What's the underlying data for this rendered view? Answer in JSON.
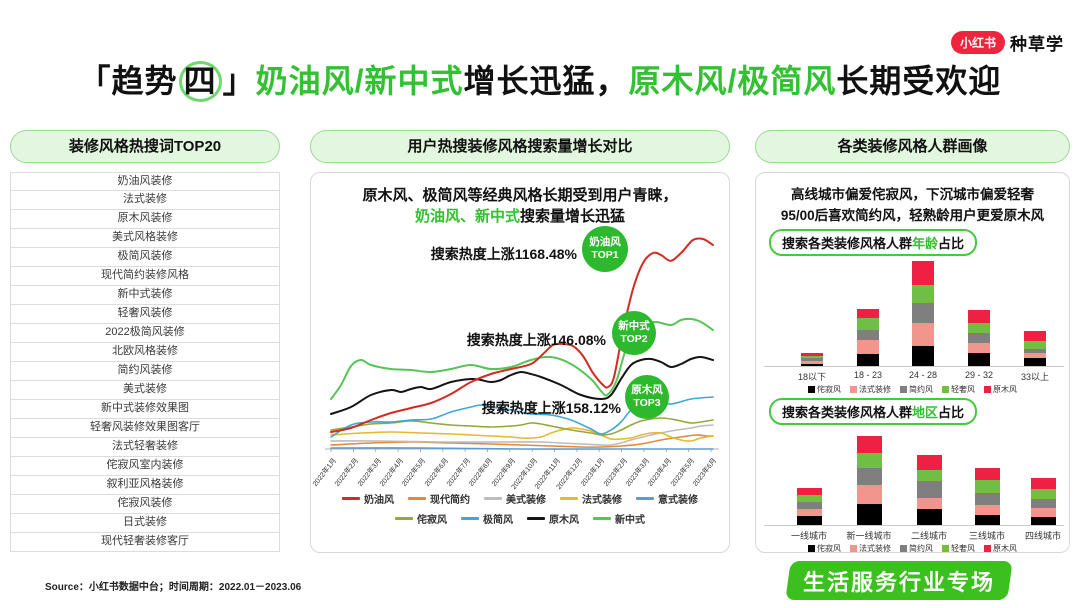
{
  "logo": {
    "brand": "小红书",
    "suffix": "种草学"
  },
  "title": {
    "parts": [
      {
        "t": "「趋势"
      },
      {
        "t": "四",
        "circled": true
      },
      {
        "t": "」"
      },
      {
        "t": "奶油风/新中式",
        "green": true
      },
      {
        "t": "增长迅猛，"
      },
      {
        "t": "原木风/极简风",
        "green": true
      },
      {
        "t": "长期受欢迎"
      }
    ]
  },
  "left_panel": {
    "header": "装修风格热搜词TOP20",
    "items": [
      "奶油风装修",
      "法式装修",
      "原木风装修",
      "美式风格装修",
      "极简风装修",
      "现代简约装修风格",
      "新中式装修",
      "轻奢风装修",
      "2022极简风装修",
      "北欧风格装修",
      "简约风装修",
      "美式装修",
      "新中式装修效果图",
      "轻奢风装修效果图客厅",
      "法式轻奢装修",
      "侘寂风室内装修",
      "叙利亚风格装修",
      "侘寂风装修",
      "日式装修",
      "现代轻奢装修客厅"
    ]
  },
  "mid_panel": {
    "header": "用户热搜装修风格搜索量增长对比",
    "subtitle_line1": "原木风、极简风等经典风格长期受到用户青睐，",
    "subtitle_line2_parts": [
      {
        "t": "奶油风、新中式",
        "green": true
      },
      {
        "t": "搜索量增长迅猛"
      }
    ]
  },
  "right_panel": {
    "header": "各类装修风格人群画像",
    "subtitle_line1": "高线城市偏爱侘寂风，下沉城市偏爱轻奢",
    "subtitle_line2": "95/00后喜欢简约风，轻熟龄用户更爱原木风",
    "age_pill_parts": [
      {
        "t": "搜索各类装修风格人群"
      },
      {
        "t": "年龄",
        "green": true
      },
      {
        "t": "占比"
      }
    ],
    "region_pill_parts": [
      {
        "t": "搜索各类装修风格人群"
      },
      {
        "t": "地区",
        "green": true
      },
      {
        "t": "占比"
      }
    ]
  },
  "chart_data": [
    {
      "type": "line",
      "title": "用户热搜装修风格搜索量增长对比",
      "x": [
        "2022年1月",
        "2022年2月",
        "2022年3月",
        "2022年4月",
        "2022年5月",
        "2022年6月",
        "2022年7月",
        "2022年8月",
        "2022年9月",
        "2022年10月",
        "2022年11月",
        "2022年12月",
        "2023年1月",
        "2023年2月",
        "2023年3月",
        "2023年4月",
        "2023年5月",
        "2023年6月"
      ],
      "note": "y为搜索热度相对指数，图中点坐标为 400x228 画布像素(基线y=222)",
      "series": [
        {
          "name": "奶油风",
          "color": "#d42a21",
          "z": 9,
          "points": [
            [
              10,
              205
            ],
            [
              30,
              201
            ],
            [
              50,
              193
            ],
            [
              70,
              186
            ],
            [
              90,
              181
            ],
            [
              110,
              176
            ],
            [
              130,
              167
            ],
            [
              150,
              155
            ],
            [
              170,
              147
            ],
            [
              190,
              142
            ],
            [
              210,
              137
            ],
            [
              222,
              127
            ],
            [
              232,
              118
            ],
            [
              242,
              117
            ],
            [
              252,
              119
            ],
            [
              262,
              129
            ],
            [
              272,
              146
            ],
            [
              282,
              158
            ],
            [
              287,
              160
            ],
            [
              293,
              150
            ],
            [
              302,
              104
            ],
            [
              312,
              62
            ],
            [
              322,
              36
            ],
            [
              332,
              26
            ],
            [
              340,
              28
            ],
            [
              347,
              33
            ],
            [
              352,
              33
            ],
            [
              362,
              24
            ],
            [
              372,
              13
            ],
            [
              382,
              12
            ],
            [
              392,
              18
            ]
          ]
        },
        {
          "name": "现代简约",
          "color": "#e08a3c",
          "z": 2,
          "points": [
            [
              10,
              218
            ],
            [
              50,
              216
            ],
            [
              90,
              215
            ],
            [
              130,
              216
            ],
            [
              170,
              217
            ],
            [
              200,
              218
            ],
            [
              230,
              219
            ],
            [
              260,
              220
            ],
            [
              280,
              220
            ],
            [
              300,
              219
            ],
            [
              320,
              217
            ],
            [
              340,
              213
            ],
            [
              360,
              210
            ],
            [
              375,
              208
            ],
            [
              385,
              209
            ],
            [
              392,
              209
            ]
          ]
        },
        {
          "name": "美式装修",
          "color": "#bcbcbc",
          "z": 3,
          "points": [
            [
              10,
              214
            ],
            [
              60,
              214
            ],
            [
              120,
              215
            ],
            [
              180,
              215
            ],
            [
              220,
              215
            ],
            [
              240,
              216
            ],
            [
              260,
              217
            ],
            [
              280,
              218
            ],
            [
              290,
              218
            ],
            [
              300,
              216
            ],
            [
              310,
              213
            ],
            [
              330,
              208
            ],
            [
              350,
              204
            ],
            [
              370,
              201
            ],
            [
              380,
              199
            ],
            [
              392,
              198
            ]
          ]
        },
        {
          "name": "法式装修",
          "color": "#e6b930",
          "z": 4,
          "points": [
            [
              10,
              208
            ],
            [
              40,
              206
            ],
            [
              70,
              205
            ],
            [
              100,
              206
            ],
            [
              130,
              207
            ],
            [
              150,
              208
            ],
            [
              170,
              209
            ],
            [
              190,
              210
            ],
            [
              200,
              211
            ],
            [
              210,
              211
            ],
            [
              220,
              210
            ],
            [
              230,
              206
            ],
            [
              240,
              203
            ],
            [
              250,
              201
            ],
            [
              260,
              202
            ],
            [
              270,
              204
            ],
            [
              280,
              208
            ],
            [
              290,
              212
            ],
            [
              300,
              212
            ],
            [
              310,
              211
            ],
            [
              320,
              208
            ],
            [
              330,
              206
            ],
            [
              340,
              206
            ],
            [
              350,
              210
            ],
            [
              360,
              213
            ],
            [
              370,
              214
            ],
            [
              380,
              211
            ],
            [
              392,
              209
            ]
          ]
        },
        {
          "name": "意式装修",
          "color": "#5b9bd5",
          "z": 1,
          "points": [
            [
              10,
              221
            ],
            [
              100,
              221
            ],
            [
              200,
              222
            ],
            [
              300,
              222
            ],
            [
              392,
              222
            ]
          ]
        },
        {
          "name": "侘寂风",
          "color": "#97a839",
          "z": 5,
          "points": [
            [
              10,
              203
            ],
            [
              30,
              200
            ],
            [
              50,
              197
            ],
            [
              70,
              196
            ],
            [
              90,
              194
            ],
            [
              110,
              196
            ],
            [
              130,
              198
            ],
            [
              150,
              199
            ],
            [
              170,
              200
            ],
            [
              190,
              199
            ],
            [
              200,
              198
            ],
            [
              210,
              196
            ],
            [
              220,
              197
            ],
            [
              230,
              199
            ],
            [
              250,
              203
            ],
            [
              270,
              206
            ],
            [
              280,
              208
            ],
            [
              290,
              207
            ],
            [
              300,
              203
            ],
            [
              310,
              198
            ],
            [
              320,
              194
            ],
            [
              330,
              192
            ],
            [
              340,
              191
            ],
            [
              350,
              192
            ],
            [
              360,
              194
            ],
            [
              370,
              196
            ],
            [
              380,
              195
            ],
            [
              392,
              193
            ]
          ]
        },
        {
          "name": "极简风",
          "color": "#3fa7d9",
          "z": 6,
          "points": [
            [
              10,
              210
            ],
            [
              30,
              198
            ],
            [
              50,
              195
            ],
            [
              70,
              195
            ],
            [
              90,
              193
            ],
            [
              110,
              192
            ],
            [
              130,
              185
            ],
            [
              150,
              180
            ],
            [
              160,
              178
            ],
            [
              170,
              180
            ],
            [
              190,
              183
            ],
            [
              210,
              187
            ],
            [
              230,
              188
            ],
            [
              250,
              193
            ],
            [
              270,
              202
            ],
            [
              280,
              207
            ],
            [
              290,
              203
            ],
            [
              300,
              195
            ],
            [
              310,
              183
            ],
            [
              320,
              177
            ],
            [
              330,
              175
            ],
            [
              350,
              177
            ],
            [
              370,
              172
            ],
            [
              392,
              170
            ]
          ]
        },
        {
          "name": "原木风",
          "color": "#141414",
          "z": 7,
          "points": [
            [
              10,
              187
            ],
            [
              30,
              180
            ],
            [
              50,
              168
            ],
            [
              70,
              163
            ],
            [
              80,
              165
            ],
            [
              90,
              162
            ],
            [
              100,
              160
            ],
            [
              110,
              162
            ],
            [
              130,
              155
            ],
            [
              150,
              152
            ],
            [
              160,
              153
            ],
            [
              170,
              155
            ],
            [
              180,
              153
            ],
            [
              190,
              148
            ],
            [
              200,
              145
            ],
            [
              210,
              147
            ],
            [
              220,
              150
            ],
            [
              240,
              158
            ],
            [
              260,
              168
            ],
            [
              280,
              172
            ],
            [
              290,
              168
            ],
            [
              300,
              152
            ],
            [
              310,
              138
            ],
            [
              320,
              133
            ],
            [
              330,
              132
            ],
            [
              340,
              135
            ],
            [
              350,
              140
            ],
            [
              360,
              137
            ],
            [
              370,
              132
            ],
            [
              380,
              130
            ],
            [
              392,
              133
            ]
          ]
        },
        {
          "name": "新中式",
          "color": "#57c457",
          "z": 8,
          "points": [
            [
              10,
              172
            ],
            [
              20,
              158
            ],
            [
              30,
              139
            ],
            [
              40,
              133
            ],
            [
              50,
              138
            ],
            [
              70,
              142
            ],
            [
              90,
              143
            ],
            [
              110,
              145
            ],
            [
              130,
              142
            ],
            [
              150,
              138
            ],
            [
              170,
              142
            ],
            [
              190,
              140
            ],
            [
              210,
              133
            ],
            [
              230,
              130
            ],
            [
              250,
              137
            ],
            [
              270,
              152
            ],
            [
              280,
              164
            ],
            [
              286,
              168
            ],
            [
              295,
              155
            ],
            [
              305,
              122
            ],
            [
              315,
              105
            ],
            [
              325,
              98
            ],
            [
              335,
              95
            ],
            [
              350,
              98
            ],
            [
              360,
              93
            ],
            [
              370,
              92
            ],
            [
              380,
              95
            ],
            [
              392,
              103
            ]
          ]
        }
      ],
      "annotations": [
        {
          "text": "搜索热度上涨1168.48%",
          "style": "奶油风",
          "rank": "TOP1"
        },
        {
          "text": "搜索热度上涨146.08%",
          "style": "新中式",
          "rank": "TOP2"
        },
        {
          "text": "搜索热度上涨158.12%",
          "style": "原木风",
          "rank": "TOP3"
        }
      ]
    },
    {
      "type": "stacked-bar",
      "title": "搜索各类装修风格人群年龄占比",
      "categories": [
        "18以下",
        "18 - 23",
        "24 - 28",
        "29 - 32",
        "33以上"
      ],
      "unit": "搜索热度相对指数(px≈指数)",
      "series": [
        {
          "name": "侘寂风",
          "color": "#000000",
          "values": [
            2,
            12,
            20,
            13,
            8
          ]
        },
        {
          "name": "法式装修",
          "color": "#f2958d",
          "values": [
            3,
            14,
            23,
            10,
            5
          ]
        },
        {
          "name": "简约风",
          "color": "#7f7f7f",
          "values": [
            3,
            10,
            20,
            10,
            4
          ]
        },
        {
          "name": "轻奢风",
          "color": "#70bf44",
          "values": [
            2,
            12,
            18,
            10,
            8
          ]
        },
        {
          "name": "原木风",
          "color": "#ee2044",
          "values": [
            3,
            9,
            24,
            13,
            10
          ]
        }
      ]
    },
    {
      "type": "stacked-bar",
      "title": "搜索各类装修风格人群地区占比",
      "categories": [
        "一线城市",
        "新一线城市",
        "二线城市",
        "三线城市",
        "四线城市"
      ],
      "unit": "搜索热度相对指数(px≈指数)",
      "series": [
        {
          "name": "侘寂风",
          "color": "#000000",
          "values": [
            9,
            21,
            16,
            10,
            8
          ]
        },
        {
          "name": "法式装修",
          "color": "#f2958d",
          "values": [
            7,
            19,
            11,
            10,
            9
          ]
        },
        {
          "name": "简约风",
          "color": "#7f7f7f",
          "values": [
            7,
            17,
            17,
            12,
            9
          ]
        },
        {
          "name": "轻奢风",
          "color": "#70bf44",
          "values": [
            7,
            15,
            11,
            13,
            10
          ]
        },
        {
          "name": "原木风",
          "color": "#ee2044",
          "values": [
            7,
            17,
            15,
            12,
            11
          ]
        }
      ]
    }
  ],
  "footer": {
    "source": "Source：小红书数据中台；时间周期：2022.01－2023.06",
    "badge": "生活服务行业专场"
  },
  "colors": {
    "accent_green": "#33c133",
    "circle_green": "#2db92d",
    "badge_green": "#3cc01e",
    "brand_red": "#f0243c"
  }
}
